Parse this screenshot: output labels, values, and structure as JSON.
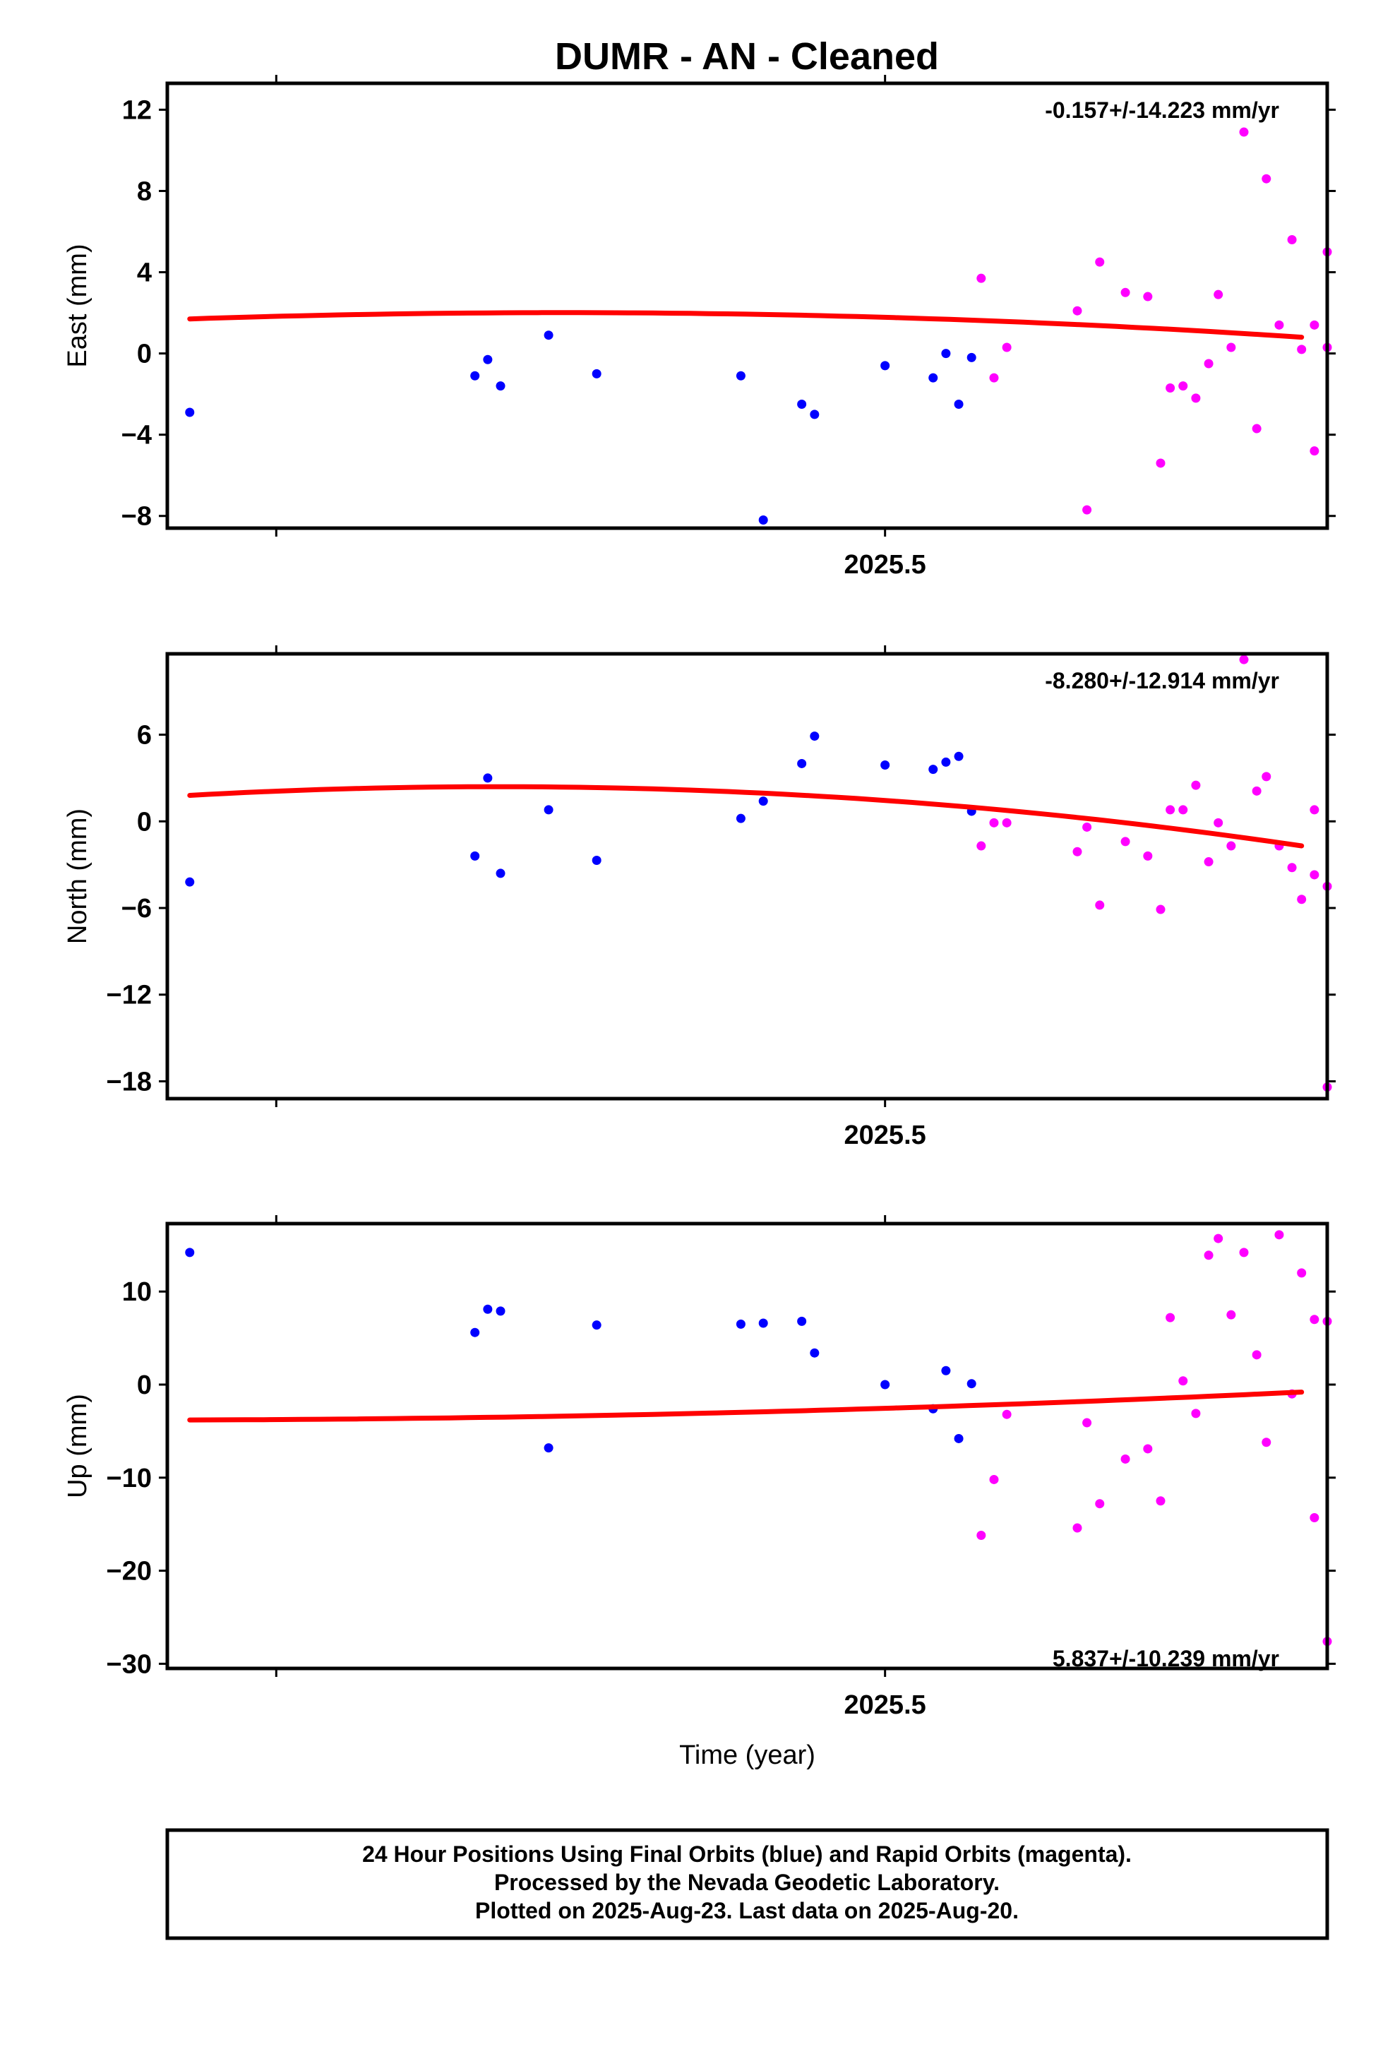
{
  "title": "DUMR  - AN - Cleaned",
  "colors": {
    "final": "#0000ff",
    "rapid": "#ff00ff",
    "trend": "#ff0000",
    "frame": "#000000"
  },
  "footer": {
    "line1": "24 Hour Positions Using Final Orbits (blue) and Rapid Orbits (magenta).",
    "line2": "Processed by the Nevada Geodetic Laboratory.",
    "line3": "Plotted on 2025-Aug-23. Last data on 2025-Aug-20."
  },
  "chart_data": [
    {
      "type": "scatter",
      "ylabel": "East (mm)",
      "xtick_label": "2025.5",
      "xlim": [
        2025.276,
        2025.638
      ],
      "xticks_minor": [
        2025.31,
        2025.5,
        2025.69
      ],
      "ylim": [
        -8.6,
        13.3
      ],
      "yticks": [
        12,
        8,
        4,
        0,
        -4,
        -8
      ],
      "ytick_labels": [
        "12",
        "8",
        "4",
        "0",
        "−4",
        "−8"
      ],
      "rate_text": "-0.157+/-14.223 mm/yr",
      "trend": {
        "x": [
          2025.283,
          2025.38,
          2025.63
        ],
        "y": [
          1.7,
          2.0,
          0.8
        ]
      },
      "final": {
        "x": [
          2025.283,
          2025.372,
          2025.376,
          2025.38,
          2025.395,
          2025.41,
          2025.455,
          2025.462,
          2025.474,
          2025.478,
          2025.5,
          2025.515,
          2025.519,
          2025.523,
          2025.527
        ],
        "y": [
          -2.9,
          -1.1,
          -0.3,
          -1.6,
          0.9,
          -1.0,
          -1.1,
          -8.2,
          -2.5,
          -3.0,
          -0.6,
          -1.2,
          0.0,
          -2.5,
          -0.2
        ]
      },
      "rapid": {
        "x": [
          2025.53,
          2025.534,
          2025.538,
          2025.56,
          2025.563,
          2025.567,
          2025.575,
          2025.582,
          2025.586,
          2025.589,
          2025.593,
          2025.597,
          2025.601,
          2025.604,
          2025.608,
          2025.612,
          2025.616,
          2025.619,
          2025.623,
          2025.627,
          2025.63,
          2025.634
        ],
        "y": [
          3.7,
          -1.2,
          0.3,
          2.1,
          -7.7,
          4.5,
          3.0,
          2.8,
          -5.4,
          -1.7,
          -1.6,
          -2.2,
          -0.5,
          2.9,
          0.3,
          10.9,
          -3.7,
          8.6,
          1.4,
          5.6,
          0.2,
          -4.8
        ]
      },
      "rapid_tail": {
        "x": [
          2025.634,
          2025.638
        ],
        "y": [
          1.4,
          5.0
        ]
      },
      "rapid_end": {
        "x": [
          2025.638
        ],
        "y": [
          0.3
        ]
      }
    },
    {
      "type": "scatter",
      "ylabel": "North (mm)",
      "xtick_label": "2025.5",
      "xlim": [
        2025.276,
        2025.638
      ],
      "xticks_minor": [
        2025.31,
        2025.5,
        2025.69
      ],
      "ylim": [
        -19.2,
        11.6
      ],
      "yticks": [
        6,
        0,
        -6,
        -12,
        -18
      ],
      "ytick_labels": [
        "6",
        "0",
        "−6",
        "−12",
        "−18"
      ],
      "rate_text": "-8.280+/-12.914 mm/yr",
      "trend": {
        "x": [
          2025.283,
          2025.38,
          2025.63
        ],
        "y": [
          1.8,
          2.4,
          -1.7
        ]
      },
      "final": {
        "x": [
          2025.283,
          2025.372,
          2025.376,
          2025.38,
          2025.395,
          2025.41,
          2025.455,
          2025.462,
          2025.474,
          2025.478,
          2025.5,
          2025.515,
          2025.519,
          2025.523,
          2025.527
        ],
        "y": [
          -4.2,
          -2.4,
          3.0,
          -3.6,
          0.8,
          -2.7,
          0.2,
          1.4,
          4.0,
          5.9,
          3.9,
          3.6,
          4.1,
          4.5,
          0.7
        ]
      },
      "rapid": {
        "x": [
          2025.53,
          2025.534,
          2025.538,
          2025.56,
          2025.563,
          2025.567,
          2025.575,
          2025.582,
          2025.586,
          2025.589,
          2025.593,
          2025.597,
          2025.601,
          2025.604,
          2025.608,
          2025.612,
          2025.616,
          2025.619,
          2025.623,
          2025.627,
          2025.63,
          2025.634
        ],
        "y": [
          -1.7,
          -0.1,
          -0.1,
          -2.1,
          -0.4,
          -5.8,
          -1.4,
          -2.4,
          -6.1,
          0.8,
          0.8,
          2.5,
          -2.8,
          -0.1,
          -1.7,
          11.2,
          2.1,
          3.1,
          -1.7,
          -3.2,
          -5.4,
          -3.7
        ]
      },
      "rapid_tail": {
        "x": [
          2025.634,
          2025.638
        ],
        "y": [
          0.8,
          -18.4
        ]
      },
      "rapid_end": {
        "x": [
          2025.638
        ],
        "y": [
          -4.5
        ]
      }
    },
    {
      "type": "scatter",
      "ylabel": "Up (mm)",
      "xtick_label": "2025.5",
      "xlabel": "Time (year)",
      "xlim": [
        2025.276,
        2025.638
      ],
      "xticks_minor": [
        2025.31,
        2025.5,
        2025.69
      ],
      "ylim": [
        -30.5,
        17.3
      ],
      "yticks": [
        10,
        0,
        -10,
        -20,
        -30
      ],
      "ytick_labels": [
        "10",
        "0",
        "−10",
        "−20",
        "−30"
      ],
      "rate_text": "5.837+/-10.239 mm/yr",
      "trend": {
        "x": [
          2025.283,
          2025.38,
          2025.63
        ],
        "y": [
          -3.8,
          -3.5,
          -0.8
        ]
      },
      "final": {
        "x": [
          2025.283,
          2025.372,
          2025.376,
          2025.38,
          2025.395,
          2025.41,
          2025.455,
          2025.462,
          2025.474,
          2025.478,
          2025.5,
          2025.515,
          2025.519,
          2025.523,
          2025.527
        ],
        "y": [
          14.2,
          5.6,
          8.1,
          7.9,
          -6.8,
          6.4,
          6.5,
          6.6,
          6.8,
          3.4,
          0.0,
          -2.6,
          1.5,
          -5.8,
          0.1
        ]
      },
      "rapid": {
        "x": [
          2025.53,
          2025.534,
          2025.538,
          2025.56,
          2025.563,
          2025.567,
          2025.575,
          2025.582,
          2025.586,
          2025.589,
          2025.593,
          2025.597,
          2025.601,
          2025.604,
          2025.608,
          2025.612,
          2025.616,
          2025.619,
          2025.623,
          2025.627,
          2025.63,
          2025.634
        ],
        "y": [
          -16.2,
          -10.2,
          -3.2,
          -15.4,
          -4.1,
          -12.8,
          -8.0,
          -6.9,
          -12.5,
          7.2,
          0.4,
          -3.1,
          13.9,
          15.7,
          7.5,
          14.2,
          3.2,
          -6.2,
          16.1,
          -1.0,
          12.0,
          -14.3
        ]
      },
      "rapid_tail": {
        "x": [
          2025.634,
          2025.638
        ],
        "y": [
          7.0,
          -27.6
        ]
      },
      "rapid_end": {
        "x": [
          2025.638
        ],
        "y": [
          6.8
        ]
      }
    }
  ]
}
